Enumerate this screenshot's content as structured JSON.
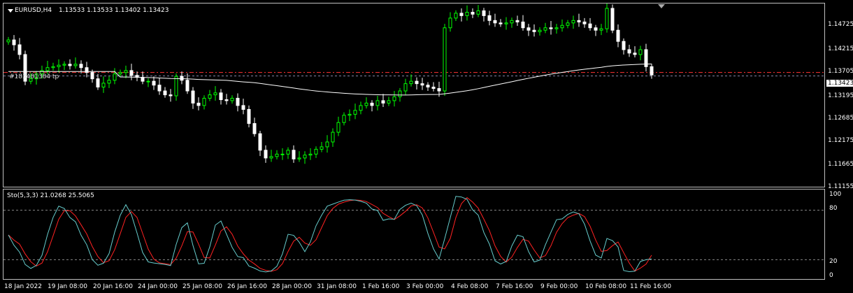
{
  "chart_header": {
    "symbol": "EURUSD,H4",
    "ohlc": "1.13533 1.13533 1.13402 1.13423"
  },
  "price_axis": {
    "ticks": [
      "1.14725",
      "1.14215",
      "1.13705",
      "1.13195",
      "1.12685",
      "1.12175",
      "1.11665",
      "1.11155"
    ],
    "current_price": "1.13423"
  },
  "trade_overlay_text": "#183481384 tp",
  "indicator": {
    "label": "Sto(5,3,3) 21.0268 25.5065",
    "ticks": [
      "100",
      "80",
      "20",
      "0"
    ]
  },
  "time_axis": {
    "labels": [
      "18 Jan 2022",
      "19 Jan 08:00",
      "20 Jan 16:00",
      "24 Jan 00:00",
      "25 Jan 08:00",
      "26 Jan 16:00",
      "28 Jan 00:00",
      "31 Jan 08:00",
      "1 Feb 16:00",
      "3 Feb 00:00",
      "4 Feb 08:00",
      "7 Feb 16:00",
      "9 Feb 00:00",
      "10 Feb 08:00",
      "11 Feb 16:00"
    ]
  },
  "colors": {
    "background": "#000000",
    "bull_candle": "#00ff00",
    "bear_candle": "#ffffff",
    "moving_average": "#ffffff",
    "level_line": "#ff3333",
    "stoch_main": "#66cccc",
    "stoch_signal": "#ff2222"
  },
  "chart_data": {
    "type": "candlestick",
    "symbol": "EURUSD",
    "timeframe": "H4",
    "price_range": [
      1.111,
      1.149
    ],
    "closes": [
      1.1415,
      1.1405,
      1.1385,
      1.133,
      1.1335,
      1.1345,
      1.1352,
      1.1358,
      1.136,
      1.1363,
      1.1365,
      1.1362,
      1.1365,
      1.1358,
      1.1348,
      1.1335,
      1.1318,
      1.1326,
      1.1332,
      1.1345,
      1.1348,
      1.1352,
      1.1342,
      1.1338,
      1.133,
      1.133,
      1.1322,
      1.131,
      1.1302,
      1.13,
      1.134,
      1.1332,
      1.131,
      1.1285,
      1.128,
      1.1295,
      1.1302,
      1.1306,
      1.1292,
      1.129,
      1.1295,
      1.128,
      1.1272,
      1.1243,
      1.1222,
      1.1188,
      1.1172,
      1.1175,
      1.118,
      1.118,
      1.1188,
      1.117,
      1.1172,
      1.1178,
      1.118,
      1.119,
      1.1195,
      1.1205,
      1.1225,
      1.1245,
      1.126,
      1.1262,
      1.127,
      1.128,
      1.1285,
      1.128,
      1.129,
      1.1285,
      1.129,
      1.1298,
      1.131,
      1.1325,
      1.133,
      1.1325,
      1.1322,
      1.1318,
      1.1315,
      1.131,
      1.144,
      1.146,
      1.147,
      1.1465,
      1.1472,
      1.1468,
      1.1475,
      1.1465,
      1.1455,
      1.145,
      1.1448,
      1.145,
      1.1455,
      1.1452,
      1.144,
      1.1435,
      1.1432,
      1.1435,
      1.144,
      1.1438,
      1.144,
      1.1445,
      1.145,
      1.1455,
      1.1452,
      1.1448,
      1.144,
      1.1435,
      1.1438,
      1.148,
      1.1435,
      1.1412,
      1.1395,
      1.1388,
      1.1385,
      1.1395,
      1.136,
      1.1343
    ],
    "stochastic": {
      "params": "5,3,3",
      "main_value": 21.0268,
      "signal_value": 25.5065,
      "levels": [
        80,
        20
      ],
      "range": [
        0,
        100
      ]
    }
  }
}
